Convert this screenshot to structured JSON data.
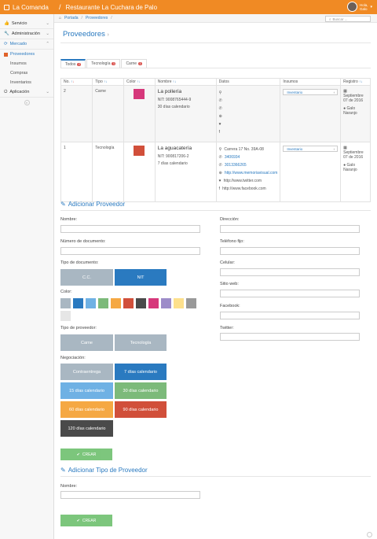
{
  "header": {
    "brand": "La Comanda",
    "separator": "/",
    "title": "Restaurante La Cuchara de Palo",
    "user_greeting": "Hola,",
    "user_name": "Galo"
  },
  "sidebar": {
    "items": [
      {
        "label": "Servicio"
      },
      {
        "label": "Administración"
      },
      {
        "label": "Mercado"
      },
      {
        "label": "Proveedores"
      },
      {
        "label": "Insumos"
      },
      {
        "label": "Compras"
      },
      {
        "label": "Inventarios"
      },
      {
        "label": "Aplicación"
      }
    ]
  },
  "breadcrumb": {
    "home": "Portada",
    "current": "Proveedores",
    "separator": "/"
  },
  "search": {
    "placeholder": "Buscar ..."
  },
  "page": {
    "title": "Proveedores",
    "title_arrow": "›"
  },
  "tabs": [
    {
      "label": "Todos",
      "count": "2"
    },
    {
      "label": "Tecnología",
      "count": "1"
    },
    {
      "label": "Carne",
      "count": "1"
    }
  ],
  "table": {
    "headers": [
      "No.",
      "Tipo",
      "Color",
      "Nombre",
      "Datos",
      "Insumos",
      "Registro"
    ],
    "rows": [
      {
        "no": "2",
        "tipo": "Carne",
        "color": "#d6387b",
        "nombre": "La pollería",
        "nit": "NIT: 9008765444-9",
        "terminos": "30 días calendario",
        "insumo": "Inventario",
        "registro_fecha": "Septiembre 07 de 2016",
        "registro_usuario": "Galo Naranjo"
      },
      {
        "no": "1",
        "tipo": "Tecnología",
        "color": "#d14f3a",
        "nombre": "La aguacatería",
        "nit": "NIT: 900817206-2",
        "terminos": "7 días calendario",
        "direccion": "Carrera 17 No. 39A-08",
        "tel1": "3406934",
        "tel2": "3013366265",
        "web": "http://www.memoriavisual.com",
        "twitter": "http://www.twitter.com",
        "facebook": "http://www.facebook.com",
        "insumo": "Inventario",
        "registro_fecha": "Septiembre 07 de 2016",
        "registro_usuario": "Galo Naranjo"
      }
    ]
  },
  "form": {
    "title": "Adicionar Proveedor",
    "nombre": "Nombre:",
    "num_doc": "Número de documento:",
    "tipo_doc": "Tipo de documento:",
    "doc_options": [
      "C.C.",
      "NIT"
    ],
    "color": "Color:",
    "colors": [
      "#a9b7c2",
      "#2a7ac0",
      "#6fb1e4",
      "#7cba7a",
      "#f5a843",
      "#d14f3a",
      "#4a4a4a",
      "#d6387b",
      "#9d8cc9",
      "#fde08c",
      "#999999",
      "#e6e6e6"
    ],
    "tipo_prov": "Tipo de proveedor:",
    "prov_options": [
      "Carne",
      "Tecnología"
    ],
    "negociacion": "Negociación:",
    "neg_options": [
      "Contraentrega",
      "7 días calendario",
      "15 días calendario",
      "30 días calendario",
      "60 días calendario",
      "90 días calendario",
      "120 días calendario"
    ],
    "direccion": "Dirección:",
    "telefono": "Teléfono fijo:",
    "celular": "Celular:",
    "sitio": "Sitio web:",
    "facebook": "Facebook:",
    "twitter": "Twitter:",
    "crear": "CREAR"
  },
  "form2": {
    "title": "Adicionar Tipo de Proveedor",
    "nombre": "Nombre:",
    "crear": "CREAR"
  },
  "colors": {
    "orange": "#f08a24",
    "blue": "#2a7ac0",
    "green": "#5cb85c"
  }
}
